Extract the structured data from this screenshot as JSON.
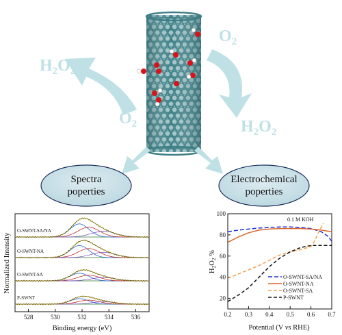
{
  "top": {
    "left_product": "H2O2",
    "left_reactant": "O2",
    "right_reactant": "O2",
    "right_product": "H2O2"
  },
  "ovals": {
    "left": [
      "Spectra",
      "poperties"
    ],
    "right": [
      "Electrochemical",
      "poperties"
    ]
  },
  "xps": {
    "ylabel": "Normalized Intensity",
    "xlabel": "Binding energy (eV)",
    "xticks": [
      "528",
      "530",
      "532",
      "534",
      "536"
    ],
    "traces": [
      "O-SWNT-SA/NA",
      "O-SWNT-NA",
      "O-SWNT-SA",
      "P-SWNT"
    ]
  },
  "chart_data": {
    "type": "line",
    "annotation": "0.1 M  KOH",
    "xlabel": "Potential (V vs RHE)",
    "ylabel": "H2O2 %",
    "xlim": [
      0.2,
      0.7
    ],
    "ylim": [
      10,
      100
    ],
    "xticks": [
      "0.2",
      "0.3",
      "0.4",
      "0.5",
      "0.6",
      "0.7"
    ],
    "yticks": [
      "20",
      "40",
      "60",
      "80",
      "100"
    ],
    "series": [
      {
        "name": "O-SWNT-SA/NA",
        "color": "#1c2fd6",
        "dash": "6,3",
        "x": [
          0.2,
          0.25,
          0.3,
          0.35,
          0.4,
          0.45,
          0.5,
          0.55,
          0.6,
          0.65,
          0.68,
          0.7
        ],
        "y": [
          83,
          84.5,
          85.5,
          86.5,
          87,
          87.5,
          87.5,
          87,
          86,
          83,
          79,
          74
        ]
      },
      {
        "name": "O-SWNT-NA",
        "color": "#d9662a",
        "dash": "",
        "x": [
          0.2,
          0.25,
          0.3,
          0.35,
          0.4,
          0.45,
          0.5,
          0.55,
          0.6,
          0.65,
          0.7
        ],
        "y": [
          73,
          78,
          82,
          84.5,
          85.5,
          86,
          86,
          86,
          85.5,
          84.5,
          83
        ]
      },
      {
        "name": "O-SWNT-SA",
        "color": "#f2a04a",
        "dash": "5,3",
        "x": [
          0.2,
          0.25,
          0.3,
          0.35,
          0.4,
          0.45,
          0.5,
          0.55,
          0.6,
          0.62,
          0.64,
          0.66
        ],
        "y": [
          39,
          43,
          47,
          51,
          56,
          61,
          64,
          66,
          69,
          75,
          84,
          91
        ]
      },
      {
        "name": "P-SWNT",
        "color": "#111111",
        "dash": "5,3",
        "x": [
          0.2,
          0.25,
          0.3,
          0.35,
          0.4,
          0.45,
          0.5,
          0.55,
          0.6,
          0.65,
          0.7
        ],
        "y": [
          17,
          23,
          30,
          40,
          50,
          58,
          64,
          68,
          70,
          70,
          70
        ]
      }
    ]
  }
}
